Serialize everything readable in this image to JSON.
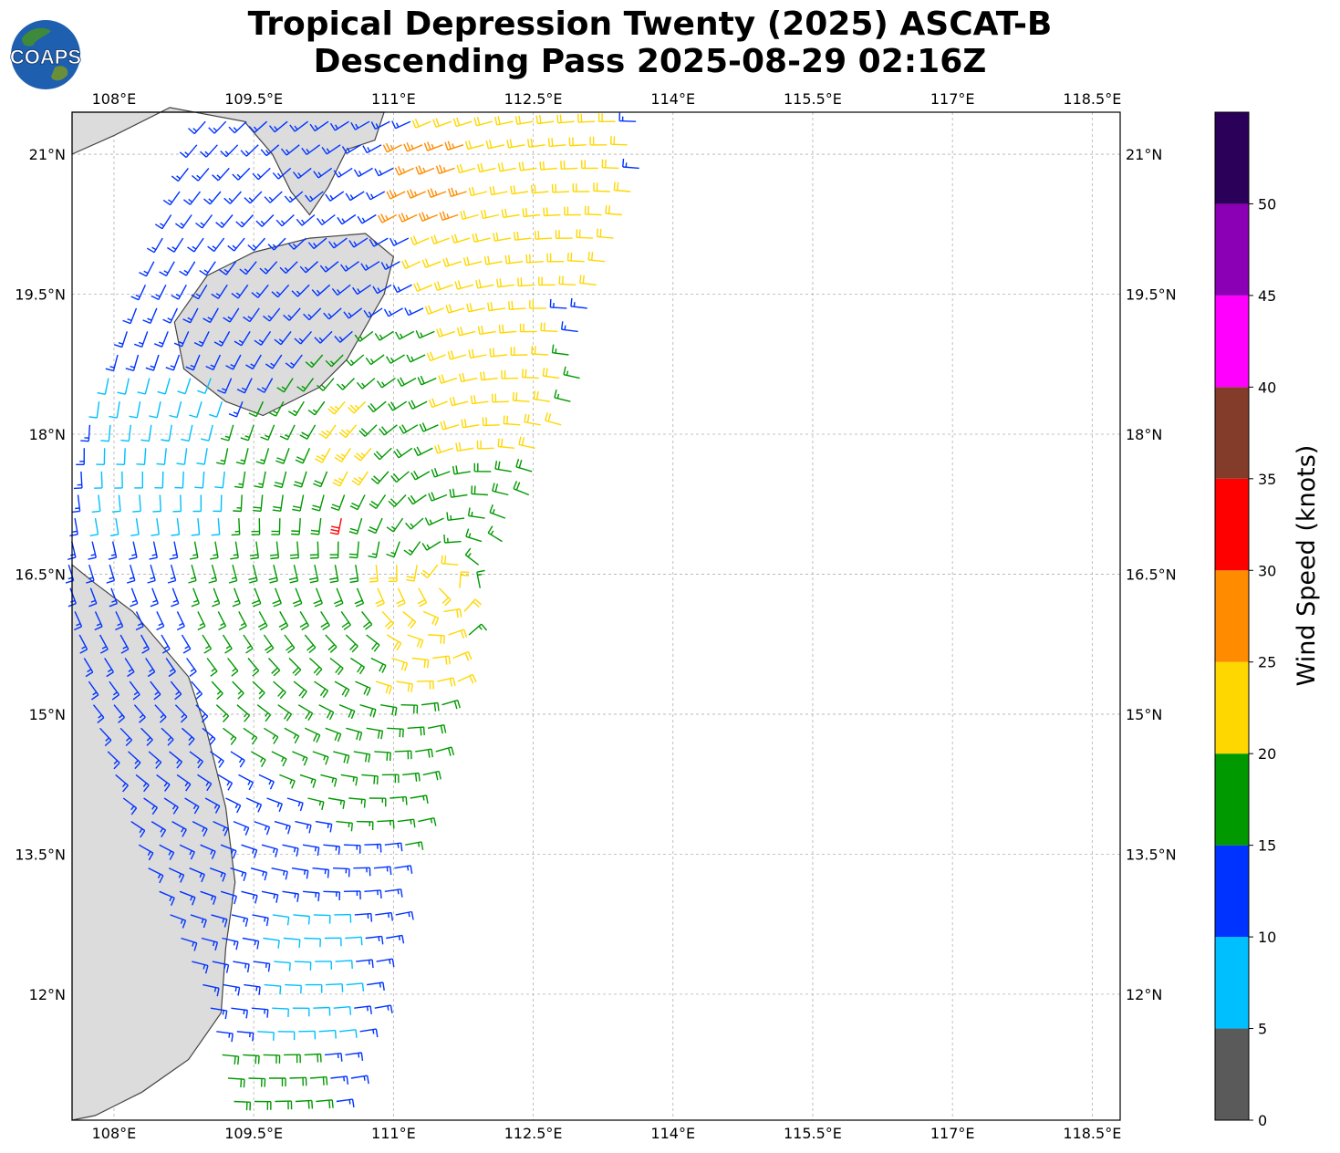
{
  "title": {
    "line1": "Tropical Depression Twenty (2025) ASCAT-B",
    "line2": "Descending Pass 2025-08-29 02:16Z"
  },
  "logo": {
    "text": "COAPS",
    "icon": "globe-logo-icon"
  },
  "map": {
    "lon_range": [
      107.55,
      118.8
    ],
    "lat_range": [
      10.65,
      21.45
    ],
    "lon_ticks": [
      {
        "value": 108.0,
        "label": "108°E"
      },
      {
        "value": 109.5,
        "label": "109.5°E"
      },
      {
        "value": 111.0,
        "label": "111°E"
      },
      {
        "value": 112.5,
        "label": "112.5°E"
      },
      {
        "value": 114.0,
        "label": "114°E"
      },
      {
        "value": 115.5,
        "label": "115.5°E"
      },
      {
        "value": 117.0,
        "label": "117°E"
      },
      {
        "value": 118.5,
        "label": "118.5°E"
      }
    ],
    "lat_ticks": [
      {
        "value": 21.0,
        "label": "21°N"
      },
      {
        "value": 19.5,
        "label": "19.5°N"
      },
      {
        "value": 18.0,
        "label": "18°N"
      },
      {
        "value": 16.5,
        "label": "16.5°N"
      },
      {
        "value": 15.0,
        "label": "15°N"
      },
      {
        "value": 13.5,
        "label": "13.5°N"
      },
      {
        "value": 12.0,
        "label": "12°N"
      }
    ],
    "grid": true,
    "land_color": "#dcdcdc",
    "coast_color": "#444444"
  },
  "colorbar": {
    "label": "Wind Speed (knots)",
    "bins": [
      {
        "from": 0,
        "to": 5,
        "color": "#5a5a5a"
      },
      {
        "from": 5,
        "to": 10,
        "color": "#00bfff"
      },
      {
        "from": 10,
        "to": 15,
        "color": "#0033ff"
      },
      {
        "from": 15,
        "to": 20,
        "color": "#009900"
      },
      {
        "from": 20,
        "to": 25,
        "color": "#ffd700"
      },
      {
        "from": 25,
        "to": 30,
        "color": "#ff8c00"
      },
      {
        "from": 30,
        "to": 35,
        "color": "#ff0000"
      },
      {
        "from": 35,
        "to": 40,
        "color": "#843c2a"
      },
      {
        "from": 40,
        "to": 45,
        "color": "#ff00ff"
      },
      {
        "from": 45,
        "to": 50,
        "color": "#8b00b5"
      },
      {
        "from": 50,
        "to": 55,
        "color": "#2a0058"
      }
    ],
    "tick_labels": [
      "0",
      "5",
      "10",
      "15",
      "20",
      "25",
      "30",
      "35",
      "40",
      "45",
      "50"
    ]
  },
  "chart_data": {
    "type": "wind-barb-map",
    "units": "knots",
    "center": {
      "lon": 111.6,
      "lat": 16.4
    },
    "swath_east_edge": [
      [
        21.4,
        113.8
      ],
      [
        19.5,
        113.3
      ],
      [
        18.0,
        112.8
      ],
      [
        16.5,
        112.0
      ],
      [
        15.0,
        111.6
      ],
      [
        13.5,
        111.2
      ],
      [
        12.0,
        110.9
      ],
      [
        10.8,
        110.5
      ]
    ],
    "swath_west_edge": [
      [
        21.4,
        109.0
      ],
      [
        19.5,
        108.3
      ],
      [
        18.0,
        107.7
      ],
      [
        16.5,
        107.5
      ],
      [
        15.0,
        107.8
      ],
      [
        13.5,
        108.3
      ],
      [
        12.0,
        109.0
      ],
      [
        10.8,
        109.3
      ]
    ],
    "speed_regions": [
      {
        "lat_range": [
          19.4,
          21.4
        ],
        "lon_range": [
          111.2,
          113.6
        ],
        "speed": 22
      },
      {
        "lat_range": [
          20.3,
          21.2
        ],
        "lon_range": [
          111.0,
          111.8
        ],
        "speed": 27
      },
      {
        "lat_range": [
          17.0,
          17.3
        ],
        "lon_range": [
          110.4,
          110.6
        ],
        "speed": 32
      },
      {
        "lat_range": [
          17.5,
          18.5
        ],
        "lon_range": [
          110.3,
          110.8
        ],
        "speed": 23
      },
      {
        "lat_range": [
          15.3,
          16.6
        ],
        "lon_range": [
          110.8,
          111.8
        ],
        "speed": 22
      },
      {
        "lat_range": [
          17.8,
          19.4
        ],
        "lon_range": [
          111.5,
          112.8
        ],
        "speed": 22
      },
      {
        "lat_range": [
          11.4,
          13.0
        ],
        "lon_range": [
          109.5,
          110.5
        ],
        "speed": 8
      },
      {
        "lat_range": [
          17.0,
          18.6
        ],
        "lon_range": [
          107.8,
          109.2
        ],
        "speed": 8
      },
      {
        "lat_range": [
          10.7,
          11.4
        ],
        "lon_range": [
          108.4,
          110.2
        ],
        "speed": 18
      }
    ]
  }
}
